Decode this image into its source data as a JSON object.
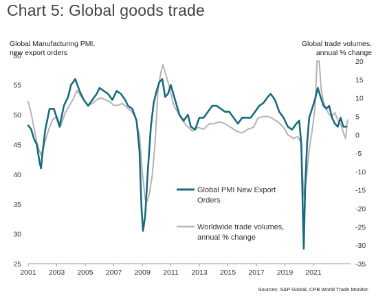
{
  "title": "Chart 5: Global goods trade",
  "left_axis_label": [
    "Global Manufacturing PMI,",
    "new export orders"
  ],
  "right_axis_label": [
    "Global trade volumes,",
    "annual % change"
  ],
  "source": "Sources: S&P Global, CPB World Trade Monitor.",
  "chart_data": {
    "type": "line",
    "x_ticks": [
      "2001",
      "2003",
      "2005",
      "2007",
      "2009",
      "2011",
      "2013",
      "2015",
      "2017",
      "2019",
      "2021"
    ],
    "xlim": [
      2001,
      2023.6
    ],
    "y_left": {
      "ticks": [
        "25",
        "30",
        "35",
        "40",
        "45",
        "50",
        "55",
        "60"
      ],
      "ylim": [
        25,
        62
      ]
    },
    "y_right": {
      "ticks": [
        "-35",
        "-30",
        "-25",
        "-20",
        "-15",
        "-10",
        "-5",
        "0",
        "5",
        "10",
        "15",
        "20"
      ],
      "ylim": [
        -35,
        20
      ]
    },
    "series": [
      {
        "name": "Global PMI New Export Orders",
        "axis": "left",
        "color": "#176a82",
        "points": [
          [
            2001.0,
            48.2
          ],
          [
            2001.2,
            47.6
          ],
          [
            2001.4,
            46.0
          ],
          [
            2001.6,
            45.0
          ],
          [
            2001.8,
            42.0
          ],
          [
            2001.9,
            41.0
          ],
          [
            2002.0,
            43.5
          ],
          [
            2002.2,
            47.5
          ],
          [
            2002.5,
            51.0
          ],
          [
            2002.8,
            51.0
          ],
          [
            2003.0,
            49.5
          ],
          [
            2003.2,
            48.0
          ],
          [
            2003.5,
            51.5
          ],
          [
            2003.8,
            53.0
          ],
          [
            2004.0,
            55.0
          ],
          [
            2004.3,
            56.0
          ],
          [
            2004.6,
            54.0
          ],
          [
            2004.9,
            52.5
          ],
          [
            2005.2,
            51.5
          ],
          [
            2005.5,
            52.5
          ],
          [
            2005.8,
            53.5
          ],
          [
            2006.0,
            54.5
          ],
          [
            2006.3,
            54.0
          ],
          [
            2006.6,
            53.5
          ],
          [
            2006.9,
            52.5
          ],
          [
            2007.2,
            54.0
          ],
          [
            2007.5,
            53.5
          ],
          [
            2007.8,
            52.5
          ],
          [
            2008.0,
            51.5
          ],
          [
            2008.3,
            51.0
          ],
          [
            2008.6,
            49.0
          ],
          [
            2008.8,
            44.0
          ],
          [
            2008.95,
            34.0
          ],
          [
            2009.05,
            30.5
          ],
          [
            2009.2,
            33.0
          ],
          [
            2009.4,
            41.0
          ],
          [
            2009.6,
            48.0
          ],
          [
            2009.8,
            52.0
          ],
          [
            2010.0,
            54.0
          ],
          [
            2010.2,
            55.5
          ],
          [
            2010.4,
            56.0
          ],
          [
            2010.6,
            53.0
          ],
          [
            2010.8,
            53.5
          ],
          [
            2011.0,
            55.0
          ],
          [
            2011.3,
            52.5
          ],
          [
            2011.6,
            50.0
          ],
          [
            2011.9,
            49.0
          ],
          [
            2012.2,
            50.0
          ],
          [
            2012.4,
            48.0
          ],
          [
            2012.7,
            47.5
          ],
          [
            2013.0,
            49.5
          ],
          [
            2013.3,
            49.5
          ],
          [
            2013.6,
            50.5
          ],
          [
            2013.9,
            51.5
          ],
          [
            2014.2,
            51.5
          ],
          [
            2014.5,
            51.0
          ],
          [
            2014.8,
            50.5
          ],
          [
            2015.1,
            50.5
          ],
          [
            2015.4,
            49.5
          ],
          [
            2015.7,
            48.5
          ],
          [
            2016.0,
            49.5
          ],
          [
            2016.3,
            49.5
          ],
          [
            2016.6,
            49.5
          ],
          [
            2016.9,
            50.5
          ],
          [
            2017.2,
            51.5
          ],
          [
            2017.5,
            52.0
          ],
          [
            2017.8,
            53.0
          ],
          [
            2018.0,
            53.5
          ],
          [
            2018.3,
            52.5
          ],
          [
            2018.6,
            50.5
          ],
          [
            2018.9,
            49.5
          ],
          [
            2019.2,
            48.0
          ],
          [
            2019.5,
            47.5
          ],
          [
            2019.8,
            48.5
          ],
          [
            2020.0,
            49.0
          ],
          [
            2020.15,
            45.0
          ],
          [
            2020.25,
            34.0
          ],
          [
            2020.32,
            27.5
          ],
          [
            2020.42,
            38.0
          ],
          [
            2020.55,
            45.0
          ],
          [
            2020.7,
            49.5
          ],
          [
            2020.9,
            51.0
          ],
          [
            2021.1,
            52.5
          ],
          [
            2021.3,
            54.5
          ],
          [
            2021.5,
            53.0
          ],
          [
            2021.7,
            51.5
          ],
          [
            2021.9,
            51.0
          ],
          [
            2022.1,
            51.5
          ],
          [
            2022.3,
            49.5
          ],
          [
            2022.5,
            48.5
          ],
          [
            2022.7,
            48.0
          ],
          [
            2022.9,
            49.5
          ],
          [
            2023.1,
            48.0
          ],
          [
            2023.3,
            48.0
          ]
        ]
      },
      {
        "name": "Worldwide trade volumes, annual % change",
        "axis": "right",
        "color": "#b3b3b3",
        "points": [
          [
            2001.0,
            9.0
          ],
          [
            2001.2,
            6.0
          ],
          [
            2001.4,
            2.0
          ],
          [
            2001.6,
            -2.0
          ],
          [
            2001.8,
            -4.5
          ],
          [
            2001.9,
            -5.5
          ],
          [
            2002.1,
            -3.0
          ],
          [
            2002.4,
            1.0
          ],
          [
            2002.7,
            4.0
          ],
          [
            2003.0,
            5.0
          ],
          [
            2003.3,
            2.5
          ],
          [
            2003.6,
            6.0
          ],
          [
            2003.9,
            8.0
          ],
          [
            2004.2,
            10.0
          ],
          [
            2004.4,
            12.0
          ],
          [
            2004.6,
            11.0
          ],
          [
            2004.9,
            9.5
          ],
          [
            2005.2,
            8.0
          ],
          [
            2005.5,
            8.5
          ],
          [
            2005.8,
            9.5
          ],
          [
            2006.1,
            10.0
          ],
          [
            2006.4,
            9.5
          ],
          [
            2006.7,
            9.0
          ],
          [
            2007.0,
            8.0
          ],
          [
            2007.3,
            8.0
          ],
          [
            2007.6,
            8.5
          ],
          [
            2007.9,
            7.5
          ],
          [
            2008.2,
            6.5
          ],
          [
            2008.5,
            5.0
          ],
          [
            2008.8,
            0.0
          ],
          [
            2009.0,
            -10.0
          ],
          [
            2009.2,
            -17.5
          ],
          [
            2009.35,
            -18.0
          ],
          [
            2009.5,
            -16.0
          ],
          [
            2009.7,
            -11.0
          ],
          [
            2009.9,
            -2.0
          ],
          [
            2010.1,
            12.0
          ],
          [
            2010.3,
            17.0
          ],
          [
            2010.45,
            19.0
          ],
          [
            2010.6,
            17.0
          ],
          [
            2010.9,
            13.0
          ],
          [
            2011.2,
            8.0
          ],
          [
            2011.5,
            6.0
          ],
          [
            2011.8,
            4.0
          ],
          [
            2012.1,
            2.5
          ],
          [
            2012.5,
            1.0
          ],
          [
            2012.9,
            2.0
          ],
          [
            2013.3,
            1.5
          ],
          [
            2013.7,
            3.0
          ],
          [
            2014.0,
            3.0
          ],
          [
            2014.4,
            3.5
          ],
          [
            2014.8,
            3.0
          ],
          [
            2015.2,
            2.0
          ],
          [
            2015.6,
            1.0
          ],
          [
            2016.0,
            0.5
          ],
          [
            2016.4,
            1.5
          ],
          [
            2016.8,
            2.0
          ],
          [
            2017.1,
            4.5
          ],
          [
            2017.5,
            5.0
          ],
          [
            2017.8,
            5.0
          ],
          [
            2018.1,
            4.5
          ],
          [
            2018.5,
            3.5
          ],
          [
            2018.9,
            2.0
          ],
          [
            2019.2,
            0.0
          ],
          [
            2019.6,
            -1.0
          ],
          [
            2019.9,
            -0.5
          ],
          [
            2020.1,
            -2.0
          ],
          [
            2020.25,
            -12.0
          ],
          [
            2020.35,
            -17.0
          ],
          [
            2020.5,
            -12.0
          ],
          [
            2020.7,
            -4.0
          ],
          [
            2020.9,
            1.0
          ],
          [
            2021.1,
            7.0
          ],
          [
            2021.25,
            20.0
          ],
          [
            2021.4,
            20.0
          ],
          [
            2021.55,
            12.0
          ],
          [
            2021.7,
            9.0
          ],
          [
            2021.9,
            7.0
          ],
          [
            2022.1,
            5.5
          ],
          [
            2022.3,
            5.0
          ],
          [
            2022.5,
            6.0
          ],
          [
            2022.7,
            4.0
          ],
          [
            2022.9,
            3.0
          ],
          [
            2023.1,
            0.5
          ],
          [
            2023.25,
            -1.0
          ],
          [
            2023.4,
            4.0
          ]
        ]
      }
    ],
    "legend": [
      {
        "label_lines": [
          "Global PMI New Export",
          "Orders"
        ],
        "color": "#176a82"
      },
      {
        "label_lines": [
          "Worldwide trade volumes,",
          "annual % change"
        ],
        "color": "#b3b3b3"
      }
    ],
    "grid": false,
    "legend_position": "center-bottom"
  }
}
